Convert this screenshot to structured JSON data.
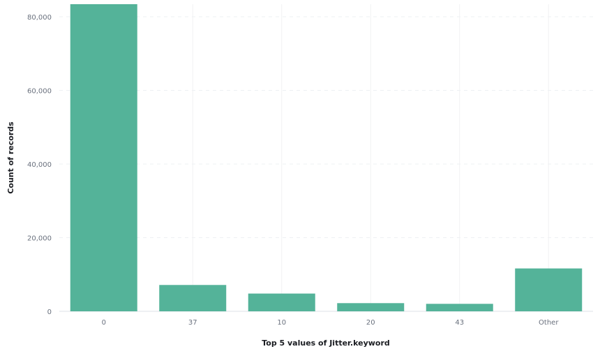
{
  "chart_data": {
    "type": "bar",
    "title": "",
    "xlabel": "Top 5 values of Jitter.keyword",
    "ylabel": "Count of records",
    "categories": [
      "0",
      "37",
      "10",
      "20",
      "43",
      "Other"
    ],
    "values": [
      83400,
      7150,
      4820,
      2220,
      2030,
      11640
    ],
    "ylim": [
      0,
      83400
    ],
    "yticks": [
      0,
      20000,
      40000,
      60000,
      80000
    ],
    "ytick_labels": [
      "0",
      "20,000",
      "40,000",
      "60,000",
      "80,000"
    ],
    "grid": true,
    "bar_color": "#54b399"
  }
}
